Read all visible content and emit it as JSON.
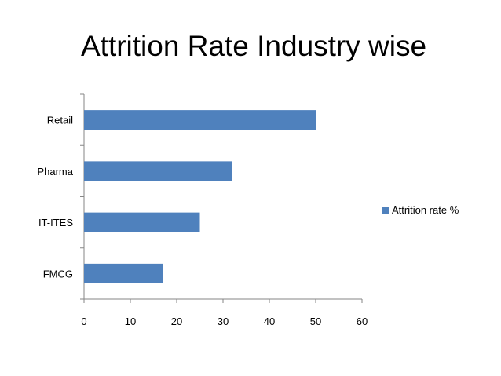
{
  "chart_data": {
    "type": "bar",
    "orientation": "horizontal",
    "title": "Attrition Rate Industry wise",
    "categories": [
      "FMCG",
      "IT-ITES",
      "Pharma",
      "Retail"
    ],
    "series": [
      {
        "name": "Attrition rate %",
        "values": [
          17,
          25,
          32,
          50
        ],
        "color": "#4f81bd"
      }
    ],
    "xlim": [
      0,
      60
    ],
    "xticks": [
      0,
      10,
      20,
      30,
      40,
      50,
      60
    ],
    "grid": false,
    "legend_position": "right"
  }
}
